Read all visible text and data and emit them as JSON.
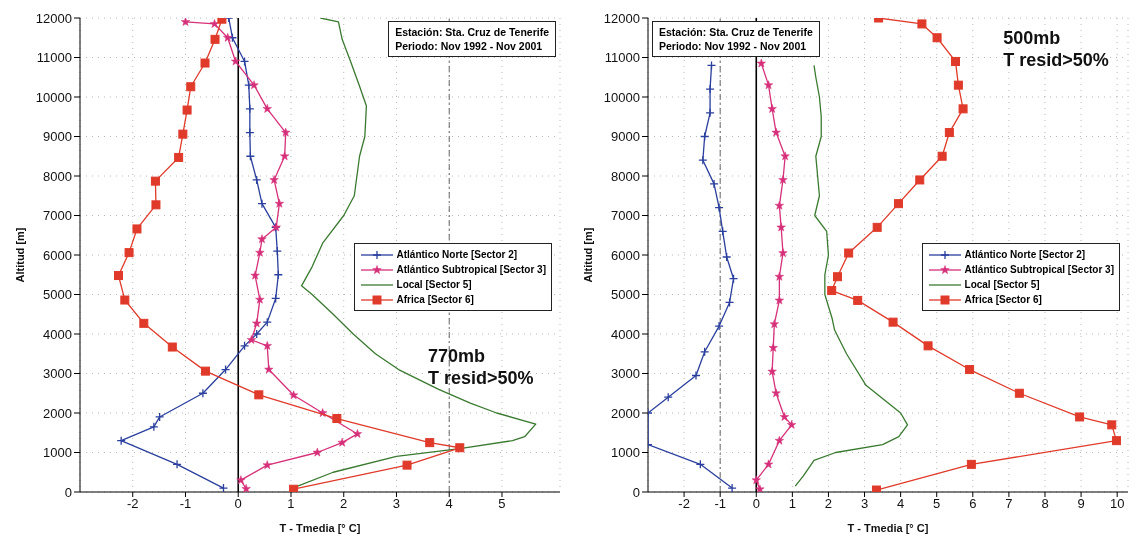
{
  "chart_data": [
    {
      "type": "line",
      "xlabel": "T - Tmedia [° C]",
      "ylabel": "Altitud [m]",
      "xlim": [
        -3,
        6.1
      ],
      "xticks": [
        -2,
        -1,
        0,
        1,
        2,
        3,
        4,
        5
      ],
      "ylim": [
        0,
        12000
      ],
      "yticks": [
        0,
        1000,
        2000,
        3000,
        4000,
        5000,
        6000,
        7000,
        8000,
        9000,
        10000,
        11000,
        12000
      ],
      "grid": true,
      "legend": "right",
      "line_style": "solid",
      "annotations": [
        "Estación: Sta. Cruz de Tenerife",
        "Periodo: Nov 1992 - Nov 2001",
        "770mb",
        "T resid>50%"
      ],
      "ref_lines": [
        {
          "axis": "x",
          "value": 0,
          "color": "#000000",
          "line_style": "solid"
        },
        {
          "axis": "x",
          "value": 4,
          "color": "#666666",
          "line_style": "dashed"
        }
      ],
      "series": [
        {
          "name": "Atlántico Norte [Sector 2]",
          "color": "#2a3f9e",
          "marker": "cross",
          "x": [
            -0.28,
            -1.16,
            -2.22,
            -1.6,
            -1.49,
            -0.67,
            -0.24,
            0.12,
            0.35,
            0.55,
            0.71,
            0.76,
            0.74,
            0.71,
            0.45,
            0.35,
            0.23,
            0.22,
            0.22,
            0.2,
            0.12,
            -0.11,
            -0.18
          ],
          "values": [
            100,
            700,
            1300,
            1650,
            1900,
            2500,
            3100,
            3700,
            4000,
            4300,
            4900,
            5500,
            6100,
            6700,
            7300,
            7900,
            8500,
            9100,
            9700,
            10300,
            10900,
            11500,
            12000
          ]
        },
        {
          "name": "Atlántico Subtropical [Sector 3]",
          "color": "#d6307a",
          "marker": "star",
          "x": [
            0.15,
            0.05,
            0.55,
            1.5,
            1.97,
            2.26,
            1.6,
            1.05,
            0.58,
            0.55,
            0.25,
            0.35,
            0.41,
            0.32,
            0.41,
            0.45,
            0.72,
            0.78,
            0.68,
            0.88,
            0.9,
            0.55,
            0.3,
            -0.05,
            -0.2,
            -0.45,
            -1.0
          ],
          "values": [
            80,
            300,
            680,
            1000,
            1250,
            1470,
            2000,
            2450,
            3100,
            3700,
            3850,
            4270,
            4870,
            5480,
            6060,
            6400,
            6700,
            7300,
            7900,
            8500,
            9100,
            9700,
            10300,
            10900,
            11500,
            11850,
            11900
          ]
        },
        {
          "name": "Local [Sector 5]",
          "color": "#3a7a30",
          "marker": "none",
          "x": [
            1.03,
            1.8,
            3.0,
            4.2,
            5.2,
            5.43,
            5.64,
            4.9,
            4.4,
            3.8,
            3.04,
            2.6,
            2.18,
            1.8,
            1.4,
            1.2,
            1.4,
            1.6,
            2.0,
            2.2,
            2.3,
            2.4,
            2.43,
            2.3,
            2.13,
            1.97,
            1.9,
            1.56
          ],
          "values": [
            100,
            500,
            900,
            1100,
            1300,
            1400,
            1720,
            2000,
            2250,
            2600,
            3100,
            3500,
            4000,
            4500,
            5000,
            5220,
            5700,
            6300,
            7000,
            7500,
            8500,
            9000,
            9770,
            10270,
            10900,
            11460,
            11900,
            12000
          ]
        },
        {
          "name": "Africa [Sector 6]",
          "color": "#e03a2a",
          "marker": "square",
          "x": [
            1.05,
            3.2,
            4.2,
            3.63,
            1.87,
            0.39,
            -0.62,
            -1.25,
            -1.79,
            -2.15,
            -2.27,
            -2.07,
            -1.92,
            -1.56,
            -1.57,
            -1.13,
            -1.05,
            -0.97,
            -0.9,
            -0.63,
            -0.44,
            -0.31
          ],
          "values": [
            70,
            680,
            1120,
            1250,
            1860,
            2460,
            3060,
            3670,
            4270,
            4860,
            5480,
            6060,
            6660,
            7270,
            7870,
            8470,
            9060,
            9670,
            10260,
            10860,
            11460,
            11970
          ]
        }
      ]
    },
    {
      "type": "line",
      "xlabel": "T - Tmedia [° C]",
      "ylabel": "Altitud [m]",
      "xlim": [
        -3,
        10.3
      ],
      "xticks": [
        -2,
        -1,
        0,
        1,
        2,
        3,
        4,
        5,
        6,
        7,
        8,
        9,
        10
      ],
      "ylim": [
        0,
        12000
      ],
      "yticks": [
        0,
        1000,
        2000,
        3000,
        4000,
        5000,
        6000,
        7000,
        8000,
        9000,
        10000,
        11000,
        12000
      ],
      "grid": true,
      "legend": "right",
      "line_style": "solid",
      "annotations": [
        "Estación: Sta. Cruz de Tenerife",
        "Periodo: Nov 1992 - Nov 2001",
        "500mb",
        "T resid>50%"
      ],
      "ref_lines": [
        {
          "axis": "x",
          "value": 0,
          "color": "#000000",
          "line_style": "solid"
        },
        {
          "axis": "x",
          "value": -1,
          "color": "#666666",
          "line_style": "dashed"
        }
      ],
      "series": [
        {
          "name": "Atlántico Norte [Sector 2]",
          "color": "#2a3f9e",
          "marker": "cross",
          "x": [
            -0.67,
            -1.55,
            -3.0,
            -3.0,
            -2.44,
            -1.67,
            -1.43,
            -1.03,
            -0.74,
            -0.63,
            -0.82,
            -0.93,
            -1.03,
            -1.17,
            -1.48,
            -1.43,
            -1.28,
            -1.28,
            -1.24
          ],
          "values": [
            100,
            700,
            1200,
            2000,
            2400,
            2950,
            3550,
            4200,
            4800,
            5400,
            5950,
            6600,
            7200,
            7800,
            8400,
            9000,
            9600,
            10200,
            10800
          ]
        },
        {
          "name": "Atlántico Subtropical [Sector 3]",
          "color": "#d6307a",
          "marker": "star",
          "x": [
            0.1,
            0.0,
            0.34,
            0.64,
            0.98,
            0.78,
            0.55,
            0.44,
            0.47,
            0.5,
            0.64,
            0.64,
            0.74,
            0.69,
            0.64,
            0.74,
            0.8,
            0.55,
            0.44,
            0.34,
            0.14
          ],
          "values": [
            70,
            300,
            700,
            1300,
            1700,
            1900,
            2500,
            3050,
            3650,
            4250,
            4850,
            5450,
            6050,
            6700,
            7250,
            7900,
            8500,
            9100,
            9700,
            10300,
            10850
          ]
        },
        {
          "name": "Local [Sector 5]",
          "color": "#3a7a30",
          "marker": "none",
          "x": [
            1.08,
            1.3,
            1.6,
            2.2,
            3.5,
            3.95,
            4.19,
            4.0,
            3.04,
            2.5,
            2.17,
            2.1,
            1.9,
            1.9,
            2.0,
            1.95,
            1.62,
            1.75,
            1.7,
            1.65,
            1.8,
            1.8,
            1.75,
            1.65,
            1.6
          ],
          "values": [
            150,
            400,
            800,
            1000,
            1200,
            1400,
            1700,
            2000,
            2700,
            3500,
            4100,
            4400,
            5000,
            5500,
            6000,
            6600,
            7000,
            7500,
            8000,
            8500,
            9000,
            9500,
            10000,
            10500,
            10800
          ]
        },
        {
          "name": "Africa [Sector 6]",
          "color": "#e03a2a",
          "marker": "square",
          "x": [
            3.33,
            5.96,
            9.98,
            9.85,
            8.96,
            7.29,
            5.91,
            4.76,
            3.79,
            2.81,
            2.09,
            2.25,
            2.56,
            3.35,
            3.94,
            4.53,
            5.15,
            5.35,
            5.73,
            5.6,
            5.52,
            5.01,
            4.59,
            3.39
          ],
          "values": [
            50,
            700,
            1300,
            1700,
            1900,
            2500,
            3100,
            3700,
            4300,
            4850,
            5100,
            5450,
            6050,
            6700,
            7300,
            7900,
            8500,
            9100,
            9700,
            10300,
            10900,
            11500,
            11850,
            12000
          ]
        }
      ]
    }
  ]
}
